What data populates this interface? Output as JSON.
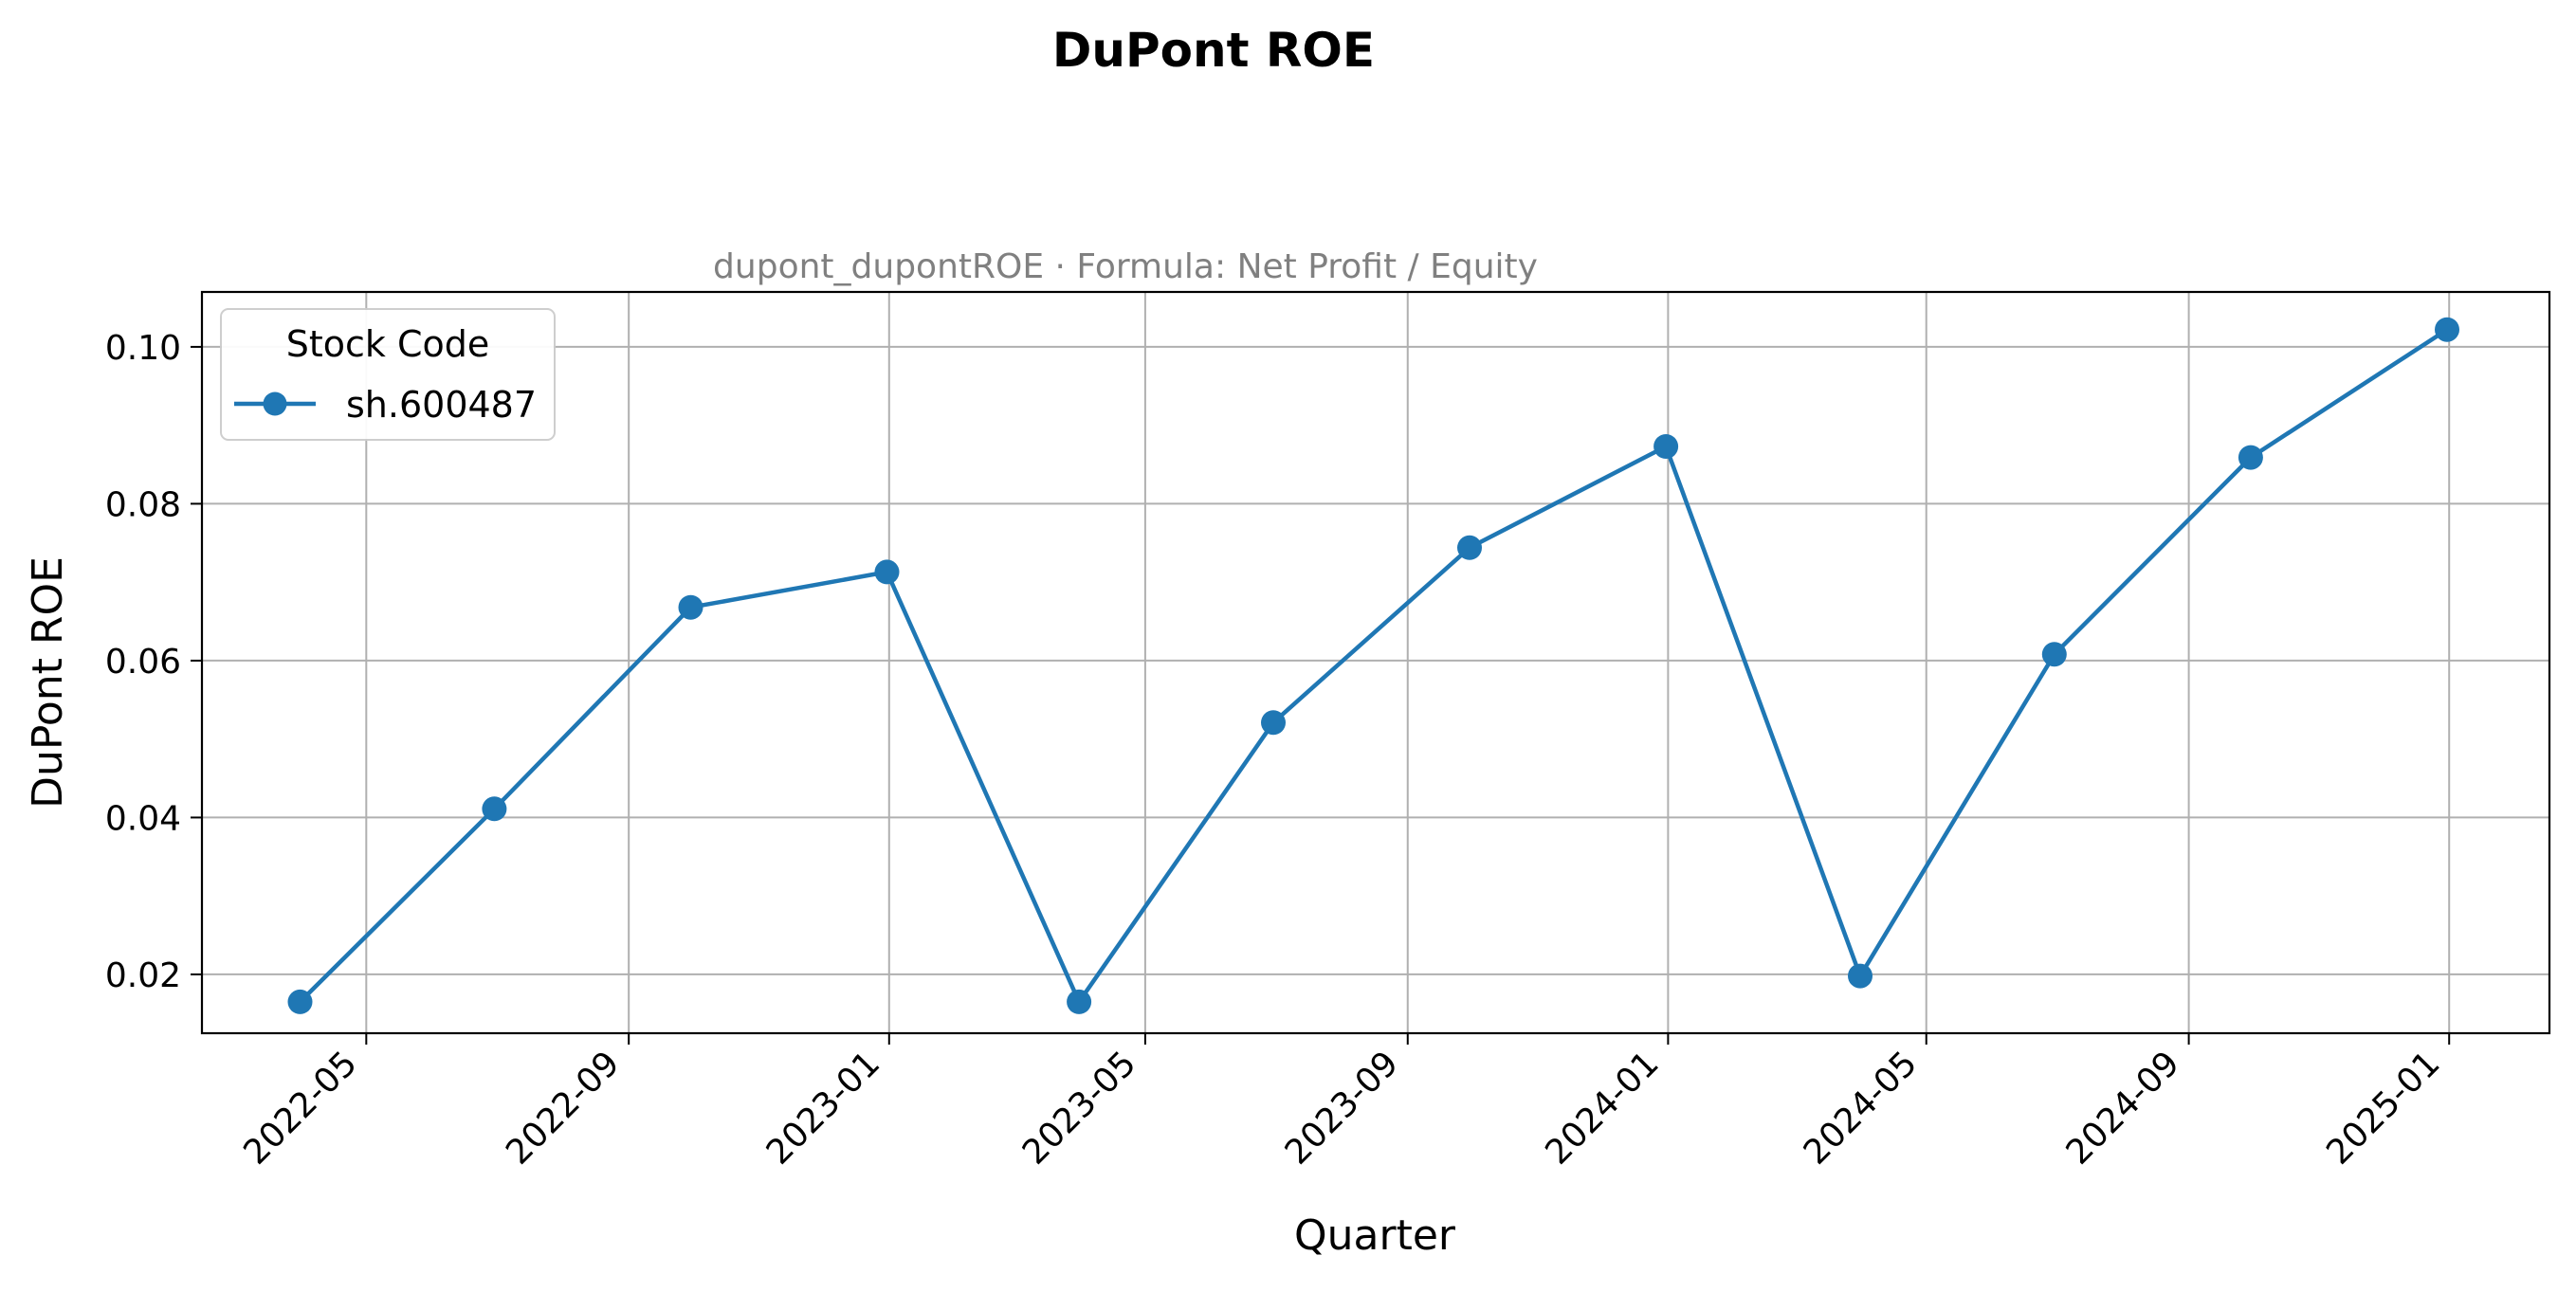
{
  "chart_data": {
    "type": "line",
    "title": "DuPont ROE",
    "subtitle": "dupont_dupontROE · Formula: Net Profit / Equity",
    "xlabel": "Quarter",
    "ylabel": "DuPont ROE",
    "x_type": "date",
    "xlim": [
      "2022-02-13",
      "2025-02-17"
    ],
    "ylim": [
      0.0125,
      0.107
    ],
    "x_ticks": [
      "2022-05-01",
      "2022-09-01",
      "2023-01-01",
      "2023-05-01",
      "2023-09-01",
      "2024-01-01",
      "2024-05-01",
      "2024-09-01",
      "2025-01-01"
    ],
    "x_tick_labels": [
      "2022-05",
      "2022-09",
      "2023-01",
      "2023-05",
      "2023-09",
      "2024-01",
      "2024-05",
      "2024-09",
      "2025-01"
    ],
    "y_ticks": [
      0.02,
      0.04,
      0.06,
      0.08,
      0.1
    ],
    "y_tick_labels": [
      "0.02",
      "0.04",
      "0.06",
      "0.08",
      "0.10"
    ],
    "grid": true,
    "legend": {
      "title": "Stock Code",
      "placement": "top-left"
    },
    "series": [
      {
        "name": "sh.600487",
        "color": "#1f77b4",
        "marker": "circle",
        "x": [
          "2022-03-31",
          "2022-06-30",
          "2022-09-30",
          "2022-12-31",
          "2023-03-31",
          "2023-06-30",
          "2023-09-30",
          "2023-12-31",
          "2024-03-31",
          "2024-06-30",
          "2024-09-30",
          "2024-12-31"
        ],
        "y": [
          0.0165,
          0.0411,
          0.0668,
          0.0713,
          0.0165,
          0.0521,
          0.0744,
          0.0873,
          0.0198,
          0.0608,
          0.0859,
          0.1022
        ]
      }
    ]
  }
}
